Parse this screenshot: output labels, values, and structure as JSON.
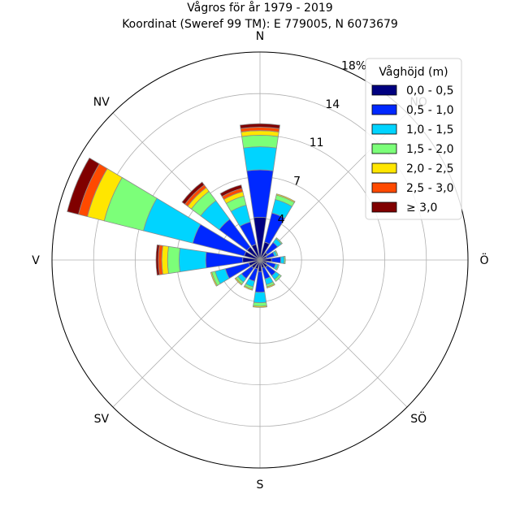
{
  "chart_data": {
    "type": "windrose",
    "title": "Vågros för år 1979 - 2019",
    "subtitle": "Koordinat (Sweref 99 TM): E 779005, N 6073679",
    "directions": [
      "N",
      "NO",
      "Ö",
      "SÖ",
      "S",
      "SV",
      "V",
      "NV"
    ],
    "radial_ticks": [
      "4",
      "7",
      "11",
      "14",
      "18%"
    ],
    "radial_tick_values": [
      3.6,
      7.2,
      10.8,
      14.4,
      18.0
    ],
    "rmax": 18.0,
    "sectors_deg": [
      0,
      22.5,
      45,
      67.5,
      90,
      112.5,
      135,
      157.5,
      180,
      202.5,
      225,
      247.5,
      270,
      292.5,
      315,
      337.5
    ],
    "legend": {
      "title": "Våghöjd (m)",
      "placement": "upper-right",
      "bins": [
        "0,0 - 0,5",
        "0,5 - 1,0",
        "1,0 - 1,5",
        "1,5 - 2,0",
        "2,0 - 2,5",
        "2,5 - 3,0",
        "≥ 3,0"
      ],
      "colors": [
        "#000080",
        "#0028ff",
        "#00d4ff",
        "#7cff79",
        "#ffe600",
        "#ff4a00",
        "#800000"
      ]
    },
    "series": [
      {
        "name": "0,0 - 0,5",
        "values": [
          3.7,
          1.6,
          0.8,
          0.6,
          1.0,
          0.6,
          0.8,
          0.7,
          1.0,
          0.8,
          0.9,
          1.0,
          1.5,
          1.4,
          1.4,
          1.4
        ]
      },
      {
        "name": "0,5 - 1,0",
        "values": [
          4.1,
          2.6,
          1.1,
          0.7,
          0.8,
          0.8,
          0.9,
          1.0,
          1.8,
          1.1,
          1.1,
          2.1,
          3.2,
          4.6,
          3.0,
          2.0
        ]
      },
      {
        "name": "1,0 - 1,5",
        "values": [
          2.0,
          1.2,
          0.4,
          0.2,
          0.3,
          0.2,
          0.4,
          0.5,
          0.9,
          0.5,
          0.4,
          0.9,
          2.3,
          4.4,
          2.0,
          1.5
        ]
      },
      {
        "name": "1,5 - 2,0",
        "values": [
          1.0,
          0.4,
          0.1,
          0.1,
          0.1,
          0.1,
          0.2,
          0.2,
          0.3,
          0.2,
          0.2,
          0.3,
          1.0,
          3.5,
          1.0,
          0.8
        ]
      },
      {
        "name": "2,0 - 2,5",
        "values": [
          0.4,
          0.1,
          0.0,
          0.0,
          0.0,
          0.0,
          0.0,
          0.1,
          0.1,
          0.1,
          0.1,
          0.1,
          0.5,
          1.5,
          0.4,
          0.4
        ]
      },
      {
        "name": "2,5 - 3,0",
        "values": [
          0.3,
          0.0,
          0.0,
          0.0,
          0.0,
          0.0,
          0.0,
          0.0,
          0.0,
          0.0,
          0.0,
          0.0,
          0.3,
          0.8,
          0.3,
          0.3
        ]
      },
      {
        "name": "≥ 3,0",
        "values": [
          0.3,
          0.0,
          0.0,
          0.0,
          0.0,
          0.0,
          0.0,
          0.0,
          0.0,
          0.0,
          0.0,
          0.0,
          0.2,
          1.0,
          0.3,
          0.3
        ]
      }
    ]
  }
}
